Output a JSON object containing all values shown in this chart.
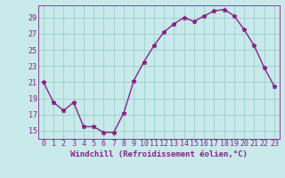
{
  "x": [
    0,
    1,
    2,
    3,
    4,
    5,
    6,
    7,
    8,
    9,
    10,
    11,
    12,
    13,
    14,
    15,
    16,
    17,
    18,
    19,
    20,
    21,
    22,
    23
  ],
  "y": [
    21.0,
    18.5,
    17.5,
    18.5,
    15.5,
    15.5,
    14.8,
    14.8,
    17.2,
    21.2,
    23.5,
    25.5,
    27.2,
    28.2,
    29.0,
    28.5,
    29.2,
    29.8,
    30.0,
    29.2,
    27.5,
    25.5,
    22.8,
    20.5
  ],
  "line_color": "#882288",
  "marker": "*",
  "marker_size": 3.5,
  "bg_color": "#c8eaea",
  "grid_color": "#9ecece",
  "xlabel": "Windchill (Refroidissement éolien,°C)",
  "xlim": [
    -0.5,
    23.5
  ],
  "ylim": [
    14.0,
    30.5
  ],
  "yticks": [
    15,
    17,
    19,
    21,
    23,
    25,
    27,
    29
  ],
  "xticks": [
    0,
    1,
    2,
    3,
    4,
    5,
    6,
    7,
    8,
    9,
    10,
    11,
    12,
    13,
    14,
    15,
    16,
    17,
    18,
    19,
    20,
    21,
    22,
    23
  ],
  "tick_color": "#882288",
  "label_fontsize": 6.5,
  "tick_fontsize": 6.0,
  "line_width": 1.0
}
